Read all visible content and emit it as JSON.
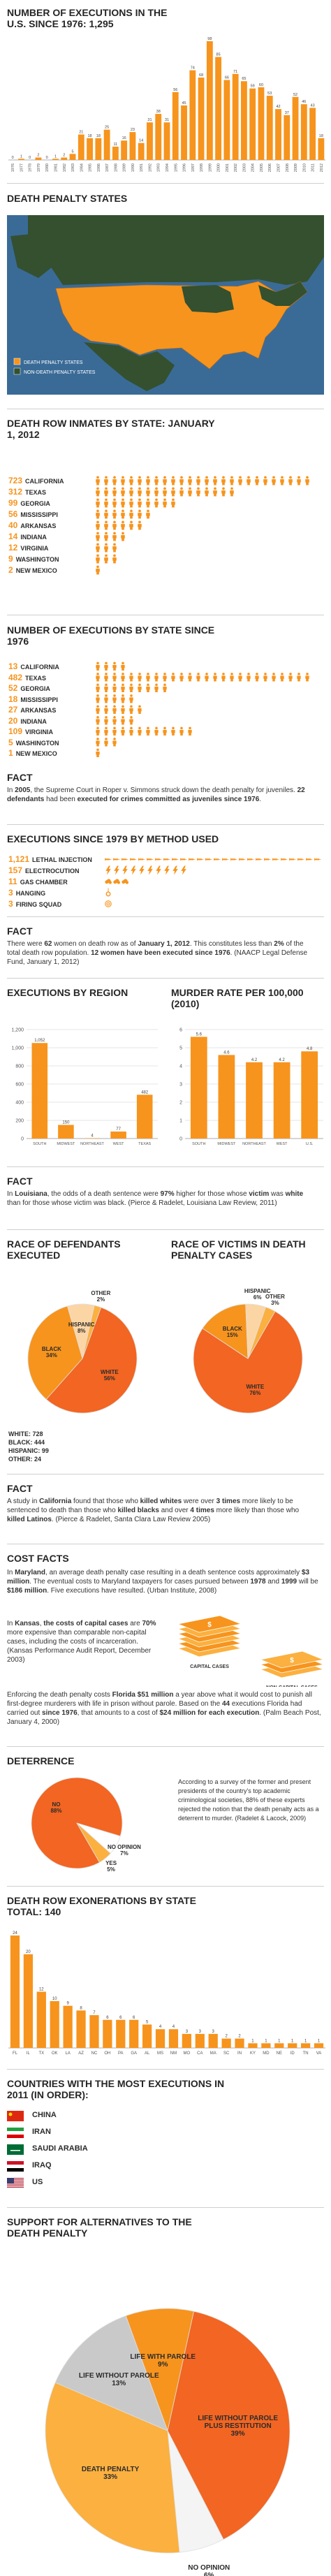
{
  "chart_data": [
    {
      "type": "bar",
      "title": "NUMBER OF EXECUTIONS IN THE U.S. SINCE 1976: 1,295",
      "categories": [
        "1976",
        "1977",
        "1978",
        "1979",
        "1980",
        "1981",
        "1982",
        "1983",
        "1984",
        "1985",
        "1986",
        "1987",
        "1988",
        "1989",
        "1990",
        "1991",
        "1992",
        "1993",
        "1994",
        "1995",
        "1996",
        "1997",
        "1998",
        "1999",
        "2000",
        "2001",
        "2002",
        "2003",
        "2004",
        "2005",
        "2006",
        "2007",
        "2008",
        "2009",
        "2010",
        "2011",
        "2012"
      ],
      "values": [
        0,
        1,
        0,
        2,
        0,
        1,
        2,
        5,
        21,
        18,
        18,
        25,
        11,
        16,
        23,
        14,
        31,
        38,
        31,
        56,
        45,
        74,
        68,
        98,
        85,
        66,
        71,
        65,
        59,
        60,
        53,
        42,
        37,
        52,
        46,
        43,
        18
      ],
      "color": "#f7941d"
    },
    {
      "type": "bar",
      "title": "EXECUTIONS BY REGION",
      "categories": [
        "SOUTH",
        "MIDWEST",
        "NORTHEAST",
        "WEST",
        "TEXAS"
      ],
      "values": [
        1052,
        150,
        4,
        77,
        482
      ],
      "value_labels": [
        "1,052",
        "150",
        "4",
        "77",
        "482"
      ],
      "color": "#f7941d",
      "ylim": [
        0,
        1200
      ],
      "yticks": [
        0,
        200,
        400,
        600,
        800,
        {
          "value": 1000,
          "label": "1,000"
        },
        {
          "value": 1200,
          "label": "1,200"
        }
      ],
      "grid": true
    },
    {
      "type": "bar",
      "title": "MURDER RATE PER 100,000 (2010)",
      "categories": [
        "SOUTH",
        "MIDWEST",
        "NORTHEAST",
        "WEST",
        "U.S."
      ],
      "values": [
        5.6,
        4.6,
        4.2,
        4.2,
        4.8
      ],
      "color": "#f7941d",
      "ylim": [
        0,
        6
      ],
      "yticks": [
        0,
        1,
        2,
        3,
        4,
        5,
        6
      ],
      "grid": true
    },
    {
      "type": "pie",
      "title": "RACE OF DEFENDANTS EXECUTED",
      "labels": [
        "WHITE",
        "BLACK",
        "HISPANIC",
        "OTHER"
      ],
      "values": [
        56,
        34,
        8,
        2
      ],
      "value_labels": [
        "56%",
        "34%",
        "8%",
        "2%"
      ],
      "colors": [
        "#f26522",
        "#f7941d",
        "#fcd5a5",
        "#fbb040"
      ]
    },
    {
      "type": "pie",
      "title": "RACE OF VICTIMS IN DEATH PENALTY CASES",
      "labels": [
        "WHITE",
        "BLACK",
        "HISPANIC",
        "OTHER"
      ],
      "values": [
        76,
        15,
        6,
        3
      ],
      "value_labels": [
        "76%",
        "15%",
        "6%",
        "3%"
      ],
      "colors": [
        "#f26522",
        "#f7941d",
        "#fcd5a5",
        "#fbb040"
      ]
    },
    {
      "type": "pie",
      "title": "DETERRENCE",
      "labels": [
        "NO",
        "NO OPINION",
        "YES"
      ],
      "values": [
        88,
        7,
        5
      ],
      "value_labels": [
        "88%",
        "7%",
        "5%"
      ],
      "colors": [
        "#f26522",
        "#ffffff",
        "#fbb040"
      ]
    },
    {
      "type": "bar",
      "title": "DEATH ROW EXONERATIONS BY STATE TOTAL: 140",
      "categories": [
        "FL",
        "IL",
        "TX",
        "OK",
        "LA",
        "AZ",
        "NC",
        "OH",
        "PA",
        "GA",
        "AL",
        "MS",
        "NM",
        "MO",
        "CA",
        "MA",
        "SC",
        "IN",
        "KY",
        "MD",
        "NE",
        "ID",
        "TN",
        "VA"
      ],
      "values": [
        24,
        20,
        12,
        10,
        9,
        8,
        7,
        6,
        6,
        6,
        5,
        4,
        4,
        3,
        3,
        3,
        2,
        2,
        1,
        1,
        1,
        1,
        1,
        1
      ],
      "color": "#f7941d"
    },
    {
      "type": "pie",
      "title": "SUPPORT FOR ALTERNATIVES TO THE DEATH PENALTY",
      "labels": [
        "LIFE WITH PAROLE",
        "LIFE WITHOUT PAROLE PLUS RESTITUTION",
        "NO OPINION",
        "DEATH PENALTY",
        "LIFE WITHOUT PAROLE"
      ],
      "values": [
        9,
        39,
        6,
        33,
        13
      ],
      "value_labels": [
        "9%",
        "39%",
        "6%",
        "33%",
        "13%"
      ],
      "colors": [
        "#f7941d",
        "#f26522",
        "#f4f4f4",
        "#fbb040",
        "#c9c9c9"
      ]
    }
  ],
  "map": {
    "title": "DEATH PENALTY STATES",
    "legend": [
      "DEATH PENALTY STATES",
      "NON-DEATH PENALTY STATES"
    ],
    "colors": [
      "#f7941d",
      "#34502f"
    ]
  },
  "inmates": {
    "title": "DEATH ROW INMATES BY STATE: JANUARY 1, 2012",
    "rows": [
      {
        "value": 723,
        "name": "CALIFORNIA"
      },
      {
        "value": 312,
        "name": "TEXAS"
      },
      {
        "value": 99,
        "name": "GEORGIA"
      },
      {
        "value": 56,
        "name": "MISSISSIPPI"
      },
      {
        "value": 40,
        "name": "ARKANSAS"
      },
      {
        "value": 14,
        "name": "INDIANA"
      },
      {
        "value": 12,
        "name": "VIRGINIA"
      },
      {
        "value": 9,
        "name": "WASHINGTON"
      },
      {
        "value": 2,
        "name": "NEW MEXICO"
      }
    ]
  },
  "state_executions": {
    "title": "NUMBER OF EXECUTIONS BY STATE SINCE 1976",
    "rows": [
      {
        "value": 13,
        "name": "CALIFORNIA"
      },
      {
        "value": 482,
        "name": "TEXAS"
      },
      {
        "value": 52,
        "name": "GEORGIA"
      },
      {
        "value": 18,
        "name": "MISSISSIPPI"
      },
      {
        "value": 27,
        "name": "ARKANSAS"
      },
      {
        "value": 20,
        "name": "INDIANA"
      },
      {
        "value": 109,
        "name": "VIRGINIA"
      },
      {
        "value": 5,
        "name": "WASHINGTON"
      },
      {
        "value": 1,
        "name": "NEW MEXICO"
      }
    ]
  },
  "methods": {
    "title": "EXECUTIONS SINCE 1979 BY METHOD USED",
    "rows": [
      {
        "value": 1121,
        "value_label": "1,121",
        "name": "LETHAL INJECTION"
      },
      {
        "value": 157,
        "name": "ELECTROCUTION"
      },
      {
        "value": 11,
        "name": "GAS CHAMBER"
      },
      {
        "value": 3,
        "name": "HANGING"
      },
      {
        "value": 3,
        "name": "FIRING SQUAD"
      }
    ]
  },
  "facts": [
    {
      "title": "FACT",
      "text": [
        "In ",
        "2005",
        ", the Supreme Court in Roper v. Simmons struck down the death penalty for juveniles. ",
        "22 defendants",
        " had been ",
        "executed for crimes committed as juveniles since 1976",
        "."
      ]
    },
    {
      "title": "FACT",
      "text": [
        "There were ",
        "62",
        " women on death row as of ",
        "January 1, 2012",
        ". This constitutes less than ",
        "2%",
        " of the total death row population. ",
        "12 women have been executed since 1976",
        ". (NAACP Legal Defense Fund, January 1, 2012)"
      ]
    },
    {
      "title": "FACT",
      "text": [
        "In ",
        "Louisiana",
        ", the odds of a death sentence were ",
        "97%",
        " higher for those whose ",
        "victim",
        " was ",
        "white",
        " than for those whose victim was black. (Pierce & Radelet, Louisiana Law Review, 2011)"
      ]
    },
    {
      "title": "FACT",
      "text": [
        "A study in ",
        "California",
        " found that those who ",
        "killed whites",
        " were over ",
        "3 times",
        " more likely to be sentenced to death than those who ",
        "killed blacks",
        " and over ",
        "4 times",
        " more likely than those who ",
        "killed Latinos",
        ". (Pierce & Radelet, Santa Clara Law Review 2005)"
      ]
    }
  ],
  "race_counts": [
    "WHITE: 728",
    "BLACK: 444",
    "HISPANIC: 99",
    "OTHER: 24"
  ],
  "cost": {
    "title": "COST FACTS",
    "paragraphs": [
      [
        "In ",
        "Maryland",
        ", an average death penalty case resulting in a death sentence costs approximately ",
        "$3 million",
        ". The eventual costs to Maryland taxpayers for cases pursued between ",
        "1978",
        " and ",
        "1999",
        " will be ",
        "$186 million",
        ". Five executions have resulted. (Urban Institute, 2008)"
      ],
      [
        "In ",
        "Kansas",
        ", ",
        "the costs of capital cases",
        " are ",
        "70%",
        " more expensive than comparable non-capital cases, including the costs of incarceration. (Kansas Performance Audit Report, December 2003)"
      ],
      [
        "Enforcing the death penalty costs ",
        "Florida $51 million",
        " a year above what it would cost to punish all first-degree murderers with life in prison without parole. Based on the ",
        "44",
        " executions Florida had carried out ",
        "since 1976",
        ", that amounts to a cost of ",
        "$24 million for each execution",
        ". (Palm Beach Post, January 4, 2000)"
      ]
    ],
    "illustrations": [
      "CAPITAL CASES",
      "NON-CAPITAL CASES"
    ]
  },
  "deterrence": {
    "text": [
      "According to a survey of the former and present presidents of the country's top academic criminological societies, 88% of these experts rejected the notion that the death penalty acts as a deterrent to murder. (Radelet & Lacock, 2009)"
    ]
  },
  "countries": {
    "title": "COUNTRIES WITH THE MOST EXECUTIONS IN 2011 (IN ORDER):",
    "items": [
      "CHINA",
      "IRAN",
      "SAUDI ARABIA",
      "IRAQ",
      "US"
    ]
  }
}
